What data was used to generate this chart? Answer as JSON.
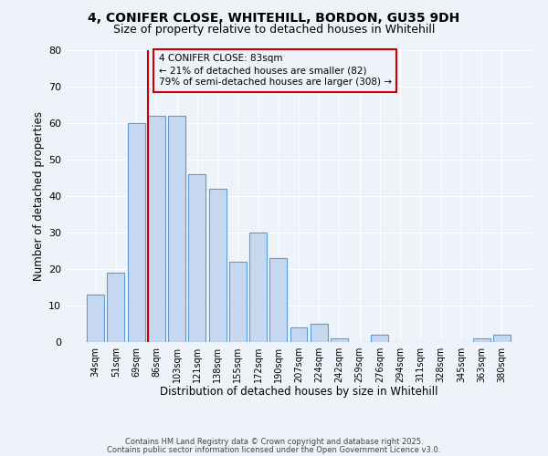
{
  "title1": "4, CONIFER CLOSE, WHITEHILL, BORDON, GU35 9DH",
  "title2": "Size of property relative to detached houses in Whitehill",
  "xlabel": "Distribution of detached houses by size in Whitehill",
  "ylabel": "Number of detached properties",
  "bar_labels": [
    "34sqm",
    "51sqm",
    "69sqm",
    "86sqm",
    "103sqm",
    "121sqm",
    "138sqm",
    "155sqm",
    "172sqm",
    "190sqm",
    "207sqm",
    "224sqm",
    "242sqm",
    "259sqm",
    "276sqm",
    "294sqm",
    "311sqm",
    "328sqm",
    "345sqm",
    "363sqm",
    "380sqm"
  ],
  "bar_values": [
    13,
    19,
    60,
    62,
    62,
    46,
    42,
    22,
    30,
    23,
    4,
    5,
    1,
    0,
    2,
    0,
    0,
    0,
    0,
    1,
    2
  ],
  "bar_color": "#c5d8f0",
  "bar_edge_color": "#5b9bd5",
  "ylim": [
    0,
    80
  ],
  "yticks": [
    0,
    10,
    20,
    30,
    40,
    50,
    60,
    70,
    80
  ],
  "vline_color": "#cc0000",
  "annotation_title": "4 CONIFER CLOSE: 83sqm",
  "annotation_line1": "← 21% of detached houses are smaller (82)",
  "annotation_line2": "79% of semi-detached houses are larger (308) →",
  "annotation_box_color": "#cc0000",
  "footer1": "Contains HM Land Registry data © Crown copyright and database right 2025.",
  "footer2": "Contains public sector information licensed under the Open Government Licence v3.0.",
  "background_color": "#eef2f9",
  "grid_color": "#ffffff",
  "title1_fontsize": 10,
  "title2_fontsize": 9,
  "xlabel_fontsize": 8.5,
  "ylabel_fontsize": 8.5,
  "footer_fontsize": 6.0
}
